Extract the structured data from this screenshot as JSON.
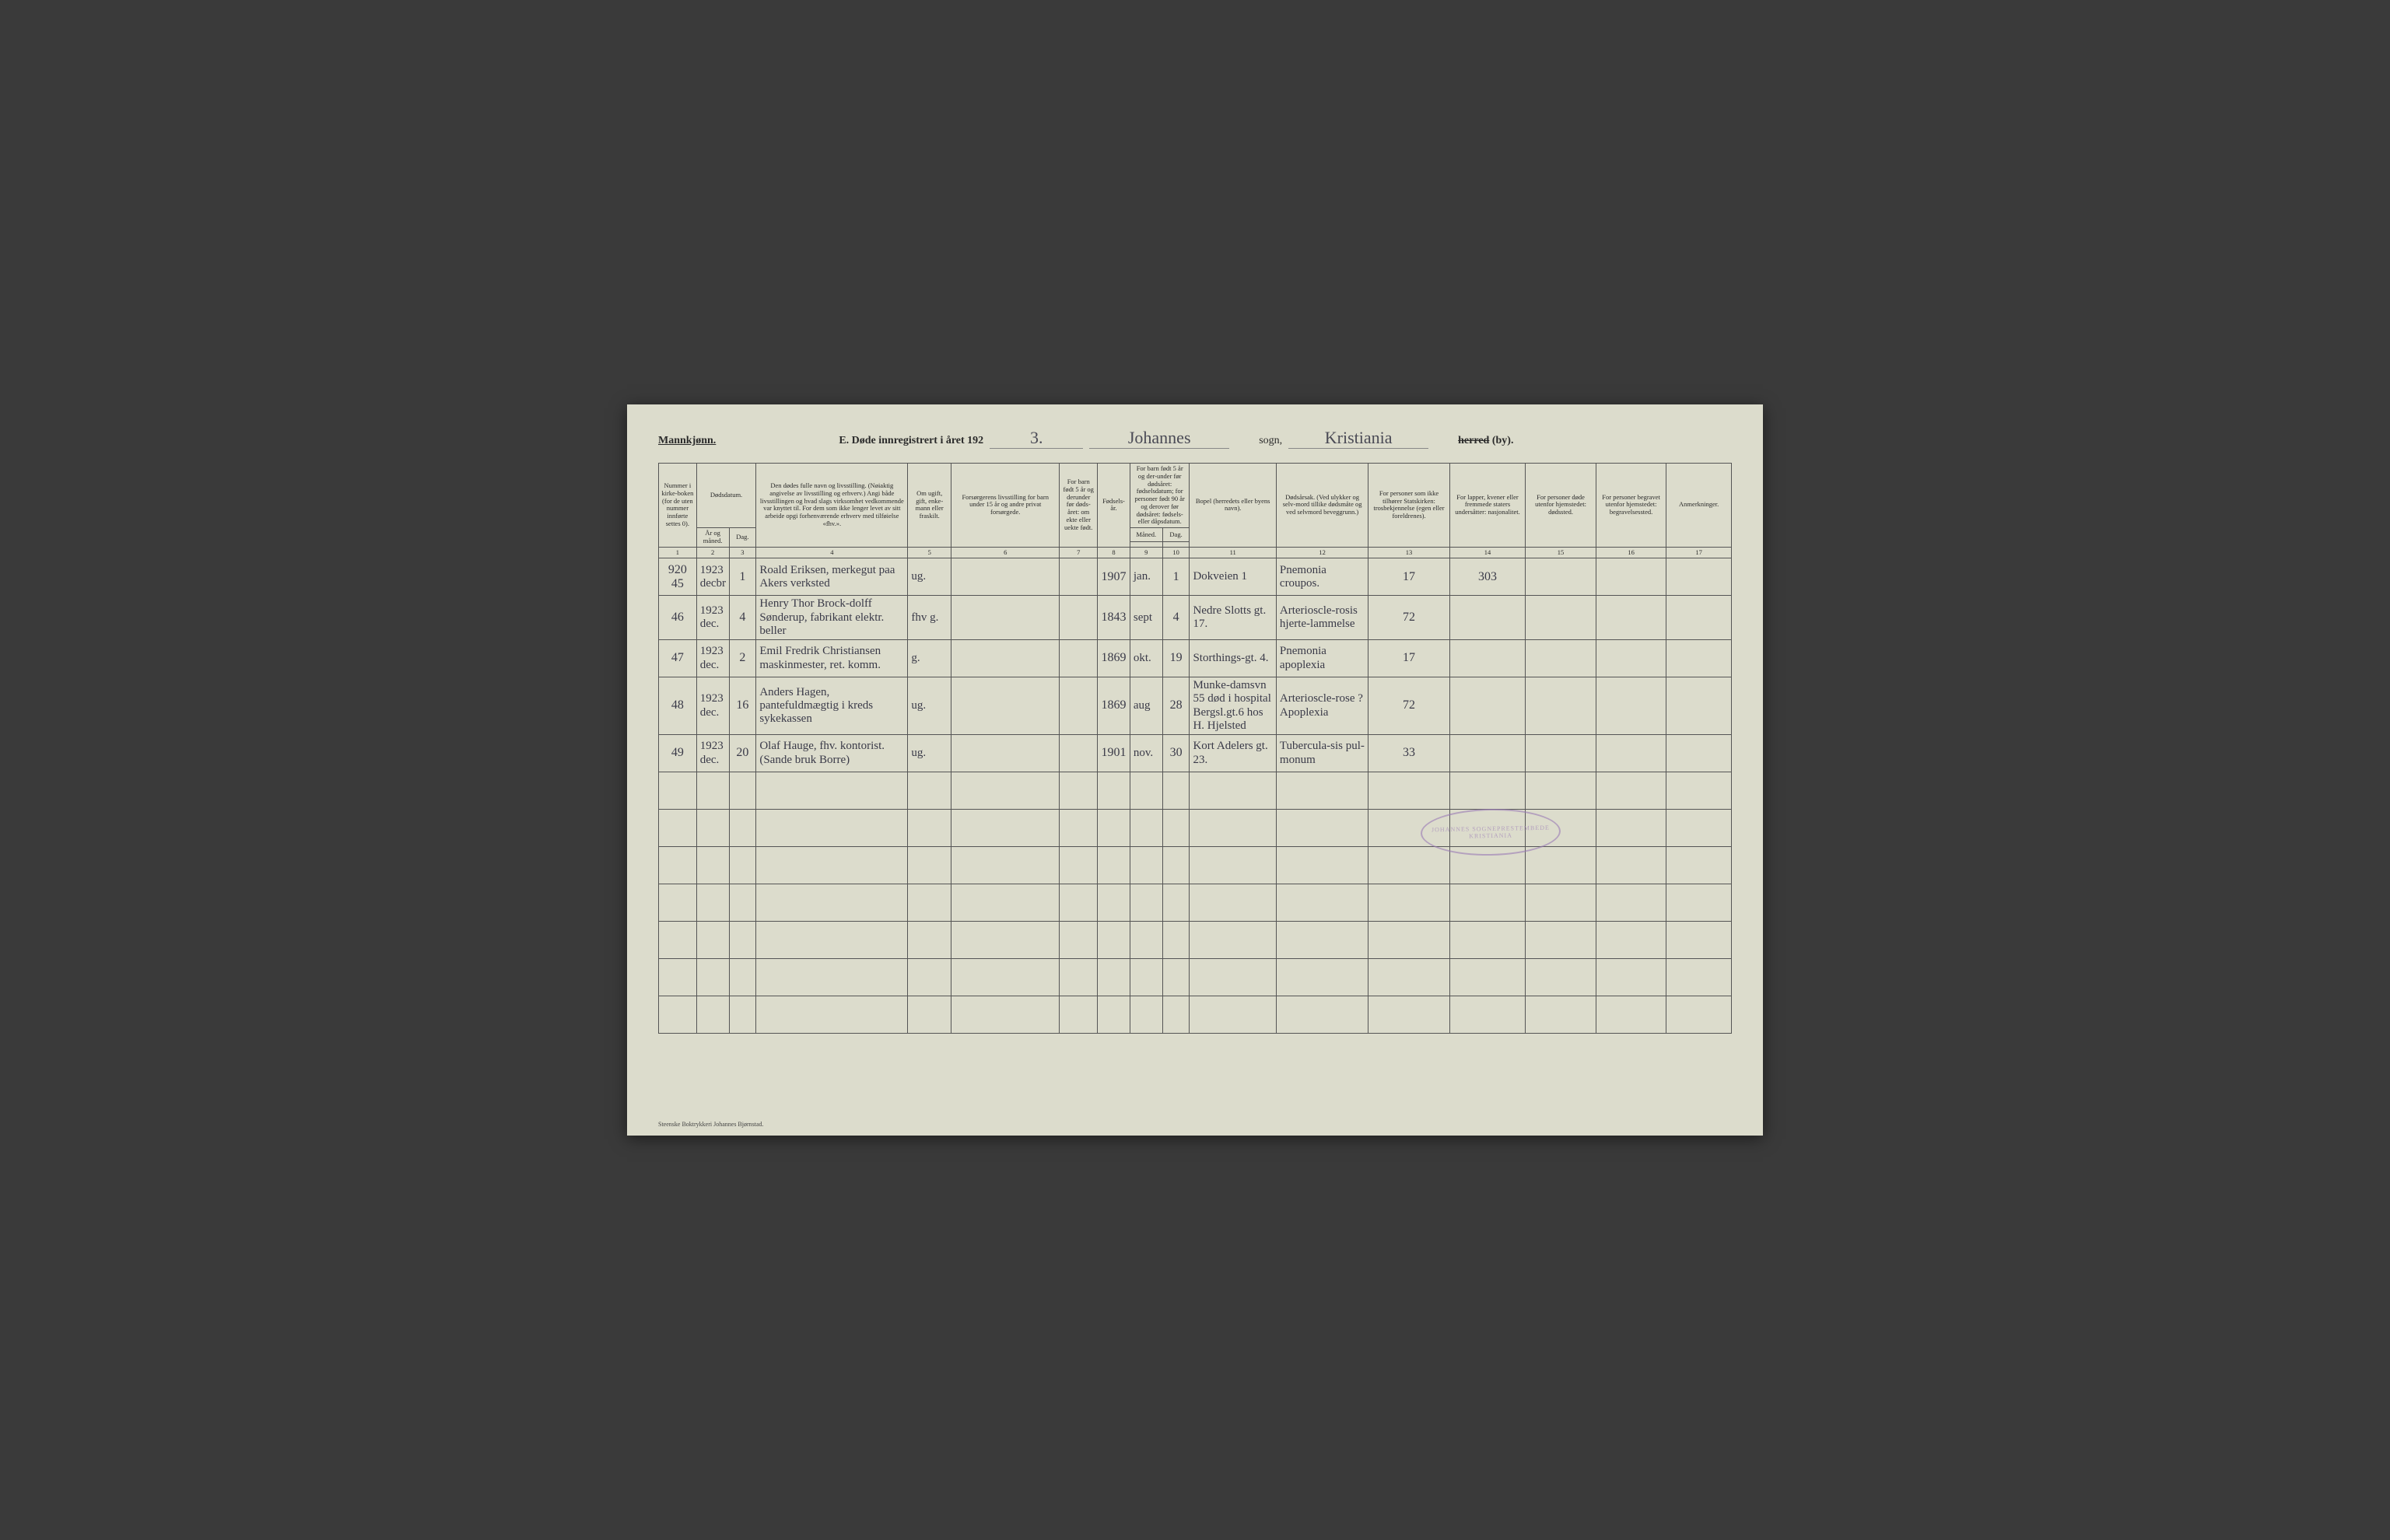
{
  "header": {
    "gender_label": "Mannkjønn.",
    "title_prefix": "E.  Døde innregistrert i året 192",
    "year_suffix": "3.",
    "parish": "Johannes",
    "sogn_label": "sogn,",
    "district": "Kristiania",
    "herred_label_strike": "herred",
    "herred_label_suffix": "(by)."
  },
  "columns": {
    "c1": "Nummer i kirke-boken (for de uten nummer innførte settes 0).",
    "c2a": "Dødsdatum.",
    "c2_year": "År og måned.",
    "c2_day": "Dag.",
    "c4": "Den dødes fulle navn og livsstilling. (Nøiaktig angivelse av livsstilling og erhverv.) Angi både livsstillingen og hvad slags virksomhet vedkommende var knyttet til. For dem som ikke lenger levet av sitt arbeide opgi forhenværende erhverv med tilføielse «fhv.».",
    "c5": "Om ugift, gift, enke-mann eller fraskilt.",
    "c6": "Forsørgerens livsstilling for barn under 15 år og andre privat forsørgede.",
    "c7": "For barn født 5 år og derunder før døds-året: om ekte eller uekte født.",
    "c8": "Fødsels-år.",
    "c9a": "For barn født 5 år og der-under før dødsåret: fødselsdatum; for personer født 90 år og derover før dødsåret: fødsels- eller dåpsdatum.",
    "c9_m": "Måned.",
    "c9_d": "Dag.",
    "c11": "Bopel (herredets eller byens navn).",
    "c12": "Dødsårsak. (Ved ulykker og selv-mord tillike dødsmåte og ved selvmord beveggrunn.)",
    "c13": "For personer som ikke tilhører Statskirken: trosbekjennelse (egen eller foreldrenes).",
    "c14": "For lapper, kvener eller fremmede staters undersåtter: nasjonalitet.",
    "c15": "For personer døde utenfor hjemstedet: dødssted.",
    "c16": "For personer begravet utenfor hjemstedet: begravelsessted.",
    "c17": "Anmerkninger."
  },
  "colnums": [
    "1",
    "2",
    "3",
    "4",
    "5",
    "6",
    "7",
    "8",
    "9",
    "10",
    "11",
    "12",
    "13",
    "14",
    "15",
    "16",
    "17"
  ],
  "rows": [
    {
      "n": "920\n45",
      "ym": "1923\ndecbr",
      "d": "1",
      "name": "Roald Eriksen, merkegut paa Akers verksted",
      "ms": "ug.",
      "prov": "",
      "leg": "",
      "by": "1907",
      "bm": "jan.",
      "bd": "1",
      "res": "Dokveien 1",
      "cause": "Pnemonia croupos.",
      "c13": "17",
      "c14": "303",
      "c15": "",
      "c16": "",
      "c17": ""
    },
    {
      "n": "46",
      "ym": "1923\ndec.",
      "d": "4",
      "name": "Henry Thor Brock-dolff Sønderup, fabrikant elektr. beller",
      "ms": "fhv g.",
      "prov": "",
      "leg": "",
      "by": "1843",
      "bm": "sept",
      "bd": "4",
      "res": "Nedre Slotts gt. 17.",
      "cause": "Arterioscle-rosis hjerte-lammelse",
      "c13": "72",
      "c14": "",
      "c15": "",
      "c16": "",
      "c17": ""
    },
    {
      "n": "47",
      "ym": "1923\ndec.",
      "d": "2",
      "name": "Emil Fredrik Christiansen maskinmester, ret. komm.",
      "ms": "g.",
      "prov": "",
      "leg": "",
      "by": "1869",
      "bm": "okt.",
      "bd": "19",
      "res": "Storthings-gt. 4.",
      "cause": "Pnemonia apoplexia",
      "c13": "17",
      "c14": "",
      "c15": "",
      "c16": "",
      "c17": ""
    },
    {
      "n": "48",
      "ym": "1923\ndec.",
      "d": "16",
      "name": "Anders Hagen, pantefuldmægtig i kreds sykekassen",
      "ms": "ug.",
      "prov": "",
      "leg": "",
      "by": "1869",
      "bm": "aug",
      "bd": "28",
      "res": "Munke-damsvn 55 død i hospital Bergsl.gt.6 hos H. Hjelsted",
      "cause": "Arterioscle-rose ? Apoplexia",
      "c13": "72",
      "c14": "",
      "c15": "",
      "c16": "",
      "c17": ""
    },
    {
      "n": "49",
      "ym": "1923\ndec.",
      "d": "20",
      "name": "Olaf Hauge, fhv. kontorist. (Sande bruk Borre)",
      "ms": "ug.",
      "prov": "",
      "leg": "",
      "by": "1901",
      "bm": "nov.",
      "bd": "30",
      "res": "Kort Adelers gt. 23.",
      "cause": "Tubercula-sis pul-monum",
      "c13": "33",
      "c14": "",
      "c15": "",
      "c16": "",
      "c17": ""
    }
  ],
  "empty_row_count": 7,
  "stamp": {
    "line1": "JOHANNES SOGNEPRESTEMBEDE",
    "line2": "KRISTIANIA"
  },
  "footer": "Steenske Boktrykkeri Johannes Bjørnstad.",
  "colors": {
    "page_bg": "#dcdccc",
    "ink": "#2a2a2a",
    "handwriting": "#3a3a48",
    "rule": "#555",
    "stamp": "#9a7ab5"
  }
}
